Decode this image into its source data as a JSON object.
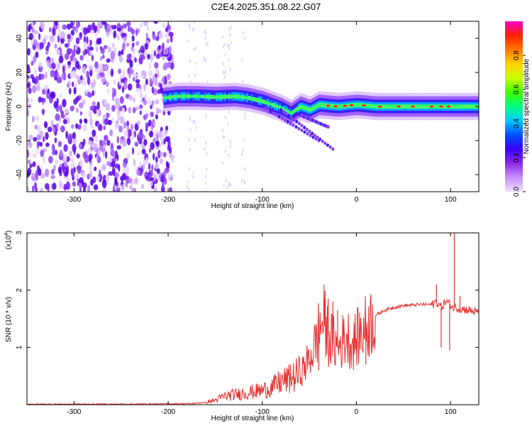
{
  "title": "C2E4.2025.351.08.22.G07",
  "charts": {
    "spectrogram": {
      "type": "heatmap",
      "xlabel": "Height of straight line (km)",
      "ylabel": "Frequency (Hz)",
      "xlim": [
        -350,
        130
      ],
      "ylim": [
        -50,
        50
      ],
      "xticks": [
        -300,
        -200,
        -100,
        0,
        100
      ],
      "xtick_labels": [
        "-300",
        "-200",
        "-100",
        "0",
        "100"
      ],
      "yticks": [
        -40,
        -20,
        0,
        20,
        40
      ],
      "ytick_labels": [
        "-40",
        "-20",
        "0",
        "20",
        "40"
      ],
      "colorbar": {
        "label": "Normalized spectral amplitude",
        "range": [
          0.0,
          1.0
        ],
        "ticks": [
          0.0,
          0.2,
          0.4,
          0.6,
          0.8
        ],
        "tick_labels": [
          "0.0",
          "0.2",
          "0.4",
          "0.6",
          "0.8"
        ],
        "colors": [
          "#f0e0ff",
          "#c890ff",
          "#8a2be2",
          "#3a00ff",
          "#0050ff",
          "#00c8ff",
          "#00ff80",
          "#40ff00",
          "#c8ff00",
          "#ffd200",
          "#ff7a00",
          "#ff2000",
          "#ff00c8"
        ]
      },
      "ridge": {
        "x": [
          -205,
          -190,
          -170,
          -150,
          -130,
          -115,
          -100,
          -90,
          -80,
          -70,
          -60,
          -50,
          -40,
          -30,
          -20,
          -10,
          0,
          20,
          40,
          60,
          80,
          100,
          130
        ],
        "y": [
          5,
          6,
          6,
          5.5,
          6,
          5,
          3,
          1,
          -1,
          -4,
          0,
          -2,
          1,
          0.5,
          0,
          0.5,
          1,
          0,
          0,
          0,
          0,
          0,
          0
        ]
      },
      "noise_region_x": [
        -350,
        -195
      ],
      "grid": false
    },
    "snr": {
      "type": "line",
      "xlabel": "Height of straight line (km)",
      "ylabel": "SNR (10 * v/v)",
      "scale_note": "(x10",
      "scale_exponent": "4",
      "xlim": [
        -350,
        130
      ],
      "ylim": [
        0,
        3
      ],
      "xticks": [
        -300,
        -200,
        -100,
        0,
        100
      ],
      "xtick_labels": [
        "-300",
        "-200",
        "-100",
        "0",
        "100"
      ],
      "yticks": [
        1,
        2,
        3
      ],
      "ytick_labels": [
        "1",
        "2",
        "3"
      ],
      "line_color": "#e83030",
      "series": [
        {
          "x": [
            -350,
            -250,
            -200,
            -175,
            -160,
            -150,
            -140,
            -120,
            -100,
            -90,
            -80,
            -70,
            -60,
            -55,
            -50,
            -45,
            -40,
            -35,
            -30,
            -25,
            -20,
            -15,
            -10,
            -5,
            0,
            10,
            20,
            30,
            40,
            50,
            60,
            70,
            80,
            85,
            90,
            95,
            100,
            102,
            105,
            110,
            120,
            130
          ],
          "y": [
            0.01,
            0.01,
            0.015,
            0.02,
            0.04,
            0.08,
            0.15,
            0.2,
            0.25,
            0.3,
            0.4,
            0.45,
            0.55,
            0.65,
            0.8,
            1.0,
            1.3,
            1.5,
            1.2,
            1.1,
            1.0,
            1.1,
            1.2,
            1.05,
            1.15,
            1.35,
            1.55,
            1.65,
            1.7,
            1.73,
            1.74,
            1.75,
            1.75,
            1.8,
            1.7,
            1.8,
            1.75,
            1.7,
            1.7,
            1.68,
            1.65,
            1.6
          ]
        }
      ],
      "spikes": [
        {
          "x": -30,
          "y": 1.85
        },
        {
          "x": -25,
          "y": 1.8
        },
        {
          "x": -20,
          "y": 1.65
        },
        {
          "x": -40,
          "y": 0.6
        },
        {
          "x": -70,
          "y": 0.7
        },
        {
          "x": 10,
          "y": 0.7
        },
        {
          "x": 85,
          "y": 2.1
        },
        {
          "x": 90,
          "y": 1.0
        },
        {
          "x": 99,
          "y": 0.95
        },
        {
          "x": 104,
          "y": 3.0
        },
        {
          "x": 110,
          "y": 1.9
        }
      ],
      "grid": false
    }
  }
}
